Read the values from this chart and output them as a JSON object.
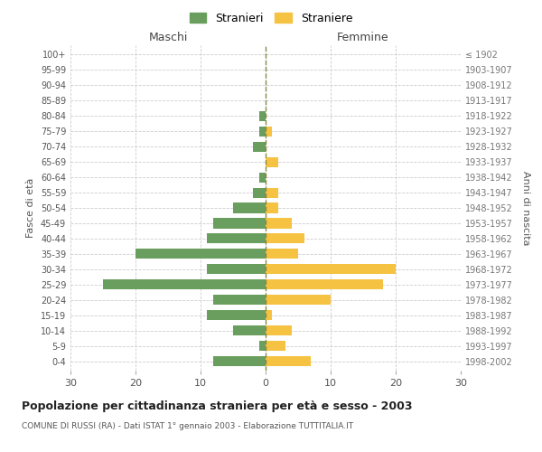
{
  "age_groups": [
    "0-4",
    "5-9",
    "10-14",
    "15-19",
    "20-24",
    "25-29",
    "30-34",
    "35-39",
    "40-44",
    "45-49",
    "50-54",
    "55-59",
    "60-64",
    "65-69",
    "70-74",
    "75-79",
    "80-84",
    "85-89",
    "90-94",
    "95-99",
    "100+"
  ],
  "birth_years": [
    "1998-2002",
    "1993-1997",
    "1988-1992",
    "1983-1987",
    "1978-1982",
    "1973-1977",
    "1968-1972",
    "1963-1967",
    "1958-1962",
    "1953-1957",
    "1948-1952",
    "1943-1947",
    "1938-1942",
    "1933-1937",
    "1928-1932",
    "1923-1927",
    "1918-1922",
    "1913-1917",
    "1908-1912",
    "1903-1907",
    "≤ 1902"
  ],
  "males": [
    8,
    1,
    5,
    9,
    8,
    25,
    9,
    20,
    9,
    8,
    5,
    2,
    1,
    0,
    2,
    1,
    1,
    0,
    0,
    0,
    0
  ],
  "females": [
    7,
    3,
    4,
    1,
    10,
    18,
    20,
    5,
    6,
    4,
    2,
    2,
    0,
    2,
    0,
    1,
    0,
    0,
    0,
    0,
    0
  ],
  "male_color": "#6a9e5e",
  "female_color": "#f5c242",
  "grid_color": "#cccccc",
  "center_line_color": "#888844",
  "title": "Popolazione per cittadinanza straniera per età e sesso - 2003",
  "subtitle": "COMUNE DI RUSSI (RA) - Dati ISTAT 1° gennaio 2003 - Elaborazione TUTTITALIA.IT",
  "xlabel_left": "Maschi",
  "xlabel_right": "Femmine",
  "ylabel_left": "Fasce di età",
  "ylabel_right": "Anni di nascita",
  "legend_male": "Stranieri",
  "legend_female": "Straniere",
  "xlim": 30,
  "bg_color": "#ffffff"
}
